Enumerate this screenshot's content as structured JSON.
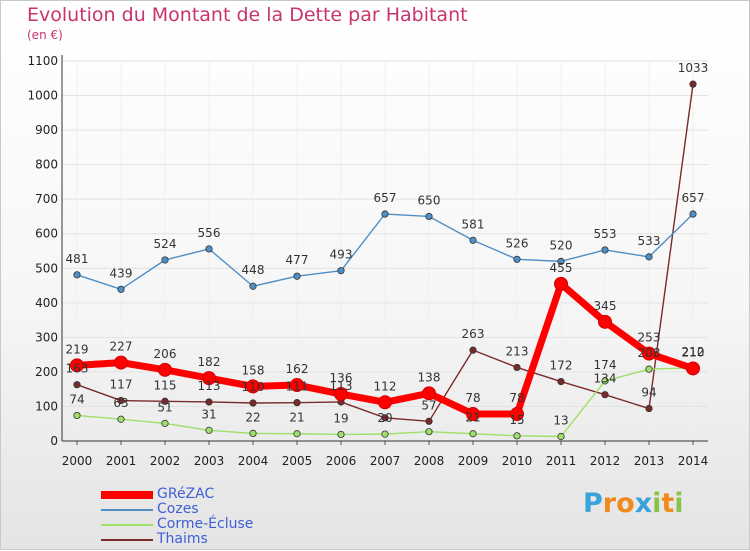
{
  "title": "Evolution du Montant de la Dette par Habitant",
  "subtitle": "(en €)",
  "logo": {
    "letters": [
      "P",
      "r",
      "o",
      "x",
      "i",
      "t",
      "i"
    ],
    "colors": [
      "#3aa3d9",
      "#f08a1c",
      "#f08a1c",
      "#3aa3d9",
      "#8bc34a",
      "#f08a1c",
      "#8bc34a"
    ]
  },
  "chart_data": {
    "type": "line",
    "title": "Evolution du Montant de la Dette par Habitant",
    "ylabel": "(en €)",
    "xlabel": "",
    "x": [
      "2000",
      "2001",
      "2002",
      "2003",
      "2004",
      "2005",
      "2006",
      "2007",
      "2008",
      "2009",
      "2010",
      "2011",
      "2012",
      "2013",
      "2014"
    ],
    "ylim": [
      0,
      1100
    ],
    "yticks": [
      0,
      100,
      200,
      300,
      400,
      500,
      600,
      700,
      800,
      900,
      1000,
      1100
    ],
    "grid": true,
    "legend_position": "bottom-left",
    "series": [
      {
        "name": "GRéZAC",
        "color": "#ff0000",
        "values": [
          219,
          227,
          206,
          182,
          158,
          162,
          136,
          112,
          138,
          78,
          78,
          455,
          345,
          253,
          210
        ]
      },
      {
        "name": "Cozes",
        "color": "#4f8fc6",
        "values": [
          481,
          439,
          524,
          556,
          448,
          477,
          493,
          657,
          650,
          581,
          526,
          520,
          553,
          533,
          657
        ]
      },
      {
        "name": "Corme-Écluse",
        "color": "#9ee06a",
        "values": [
          74,
          63,
          51,
          31,
          22,
          21,
          19,
          20,
          27,
          21,
          15,
          13,
          174,
          208,
          212
        ]
      },
      {
        "name": "Thaims",
        "color": "#7a2a2a",
        "values": [
          163,
          117,
          115,
          113,
          110,
          111,
          113,
          67,
          57,
          263,
          213,
          172,
          134,
          94,
          1033
        ]
      }
    ],
    "data_labels": [
      [
        "219",
        "227",
        "206",
        "182",
        "158",
        "162",
        "136",
        "112",
        "138",
        "78",
        "78",
        "455",
        "345",
        "253",
        "210"
      ],
      [
        "481",
        "439",
        "524",
        "556",
        "448",
        "477",
        "493",
        "657",
        "650",
        "581",
        "526",
        "520",
        "553",
        "533",
        "657"
      ],
      [
        "74",
        "63",
        "51",
        "31",
        "22",
        "21",
        "19",
        "20",
        "",
        "21",
        "15",
        "13",
        "174",
        "208",
        "212"
      ],
      [
        "163",
        "117",
        "115",
        "113",
        "110",
        "111",
        "113",
        "",
        "57",
        "263",
        "213",
        "172",
        "134",
        "94",
        "1033"
      ]
    ]
  }
}
